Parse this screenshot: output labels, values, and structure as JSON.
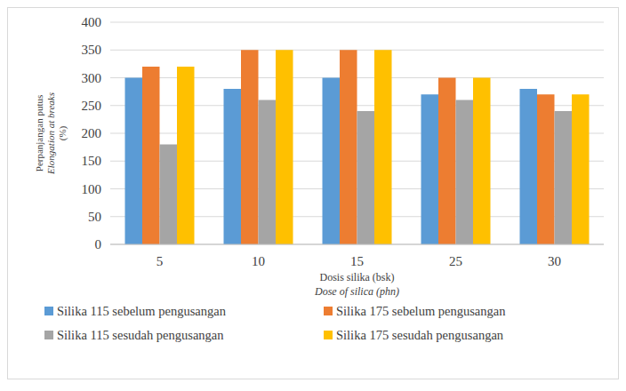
{
  "chart_data": {
    "type": "bar",
    "x_label": [
      "Dosis silika (bsk)",
      "Dose of silica (phn)"
    ],
    "y_label": [
      "Perpanjangan putus",
      "Elongation at breaks",
      "(%)"
    ],
    "categories": [
      "5",
      "10",
      "15",
      "25",
      "30"
    ],
    "series": [
      {
        "name": "Silika 115 sebelum pengusangan",
        "color": "#5b9bd5",
        "values": [
          300,
          280,
          300,
          270,
          280
        ]
      },
      {
        "name": "Silika 175 sebelum pengusangan",
        "color": "#ed7d31",
        "values": [
          320,
          350,
          350,
          300,
          270
        ]
      },
      {
        "name": "Silika 115 sesudah pengusangan",
        "color": "#a5a5a5",
        "values": [
          180,
          260,
          240,
          260,
          240
        ]
      },
      {
        "name": "Silika 175 sesudah pengusangan",
        "color": "#ffc000",
        "values": [
          320,
          350,
          350,
          300,
          270
        ]
      }
    ],
    "ylim": [
      0,
      400
    ],
    "yticks": [
      0,
      50,
      100,
      150,
      200,
      250,
      300,
      350,
      400
    ],
    "grid": true,
    "legend": "bottom"
  }
}
